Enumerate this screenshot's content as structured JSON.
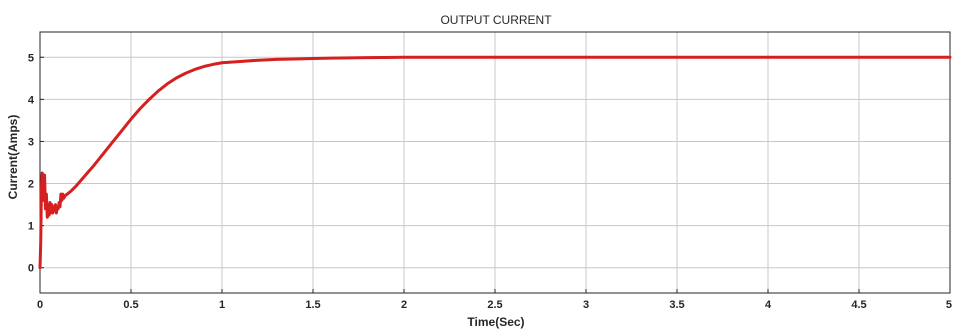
{
  "chart_data": {
    "type": "line",
    "title": "OUTPUT CURRENT",
    "xlabel": "Time(Sec)",
    "ylabel": "Current(Amps)",
    "xlim": [
      0,
      5
    ],
    "ylim": [
      -0.6,
      5.6
    ],
    "x_ticks": [
      0,
      0.5,
      1,
      1.5,
      2,
      2.5,
      3,
      3.5,
      4,
      4.5,
      5
    ],
    "x_tick_labels": [
      "0",
      "0.5",
      "1",
      "1.5",
      "2",
      "2.5",
      "3",
      "3.5",
      "4",
      "4.5",
      "5"
    ],
    "y_ticks": [
      0,
      1,
      2,
      3,
      4,
      5
    ],
    "y_tick_labels": [
      "0",
      "1",
      "2",
      "3",
      "4",
      "5"
    ],
    "grid": true,
    "line_color": "#d42020",
    "series": [
      {
        "x": [
          0,
          0.004,
          0.008,
          0.012,
          0.016,
          0.02,
          0.025,
          0.03,
          0.035,
          0.04,
          0.045,
          0.05,
          0.055,
          0.06,
          0.065,
          0.07,
          0.075,
          0.08,
          0.085,
          0.09,
          0.095,
          0.1,
          0.105,
          0.11,
          0.115,
          0.12,
          0.125,
          0.13,
          0.14,
          0.15,
          0.17,
          0.2,
          0.25,
          0.3,
          0.35,
          0.4,
          0.45,
          0.5,
          0.55,
          0.6,
          0.65,
          0.7,
          0.75,
          0.8,
          0.85,
          0.9,
          0.95,
          1.0,
          1.1,
          1.2,
          1.3,
          1.4,
          1.5,
          1.6,
          1.7,
          1.8,
          1.9,
          2.0,
          2.2,
          2.5,
          3.0,
          3.5,
          4.0,
          4.5,
          5.0
        ],
        "y": [
          0,
          0.6,
          1.9,
          2.25,
          2.2,
          1.6,
          2.2,
          1.4,
          1.75,
          1.2,
          1.5,
          1.25,
          1.55,
          1.3,
          1.5,
          1.3,
          1.45,
          1.35,
          1.5,
          1.3,
          1.45,
          1.4,
          1.55,
          1.45,
          1.75,
          1.6,
          1.75,
          1.65,
          1.72,
          1.75,
          1.82,
          1.95,
          2.2,
          2.45,
          2.72,
          2.99,
          3.26,
          3.53,
          3.78,
          4.0,
          4.2,
          4.37,
          4.51,
          4.62,
          4.71,
          4.78,
          4.83,
          4.87,
          4.9,
          4.93,
          4.95,
          4.96,
          4.97,
          4.98,
          4.985,
          4.99,
          4.995,
          5.0,
          5.0,
          5.0,
          5.0,
          5.0,
          5.0,
          5.0,
          5.0
        ]
      }
    ]
  }
}
